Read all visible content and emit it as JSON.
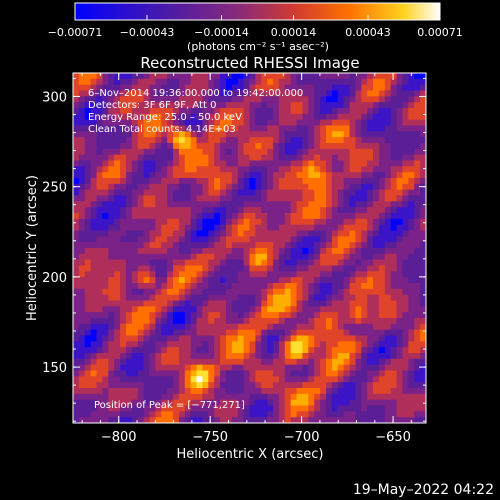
{
  "chart_data": {
    "type": "heatmap",
    "title": "Reconstructed RHESSI Image",
    "xlabel": "Heliocentric X (arcsec)",
    "ylabel": "Heliocentric Y (arcsec)",
    "xlim": [
      -825,
      -632
    ],
    "ylim": [
      119,
      313
    ],
    "xticks": [
      -800,
      -750,
      -700,
      -650
    ],
    "xtick_labels": [
      "−800",
      "−750",
      "−700",
      "−650"
    ],
    "yticks": [
      150,
      200,
      250,
      300
    ],
    "ytick_labels": [
      "150",
      "200",
      "250",
      "300"
    ],
    "colorbar": {
      "range": [
        -0.00071,
        0.00071
      ],
      "ticks": [
        -0.00071,
        -0.00043,
        -0.00014,
        0.00014,
        0.00043,
        0.00071
      ],
      "tick_labels": [
        "−0.00071",
        "−0.00043",
        "−0.00014",
        "0.00014",
        "0.00043",
        "0.00071"
      ],
      "unit_label": "(photons cm⁻² s⁻¹ asec⁻²)"
    },
    "annotations": [
      "6–Nov–2014 19:36:00.000 to 19:42:00.000",
      "Detectors: 3F 6F 9F, Att 0",
      "Energy Range: 25.0 – 50.0 keV",
      "Clean     Total counts: 4.14E+03",
      "Position of Peak = [−771,271]"
    ],
    "peak": {
      "x": -771,
      "y": 271
    },
    "grid": false,
    "colormap": [
      "#0000ff",
      "#3c14c8",
      "#5a1e96",
      "#7a2288",
      "#b02f5a",
      "#e0452a",
      "#ff7000",
      "#ffae00",
      "#ffe030",
      "#ffffff"
    ]
  },
  "footer": {
    "timestamp": "19–May–2022 04:22"
  }
}
